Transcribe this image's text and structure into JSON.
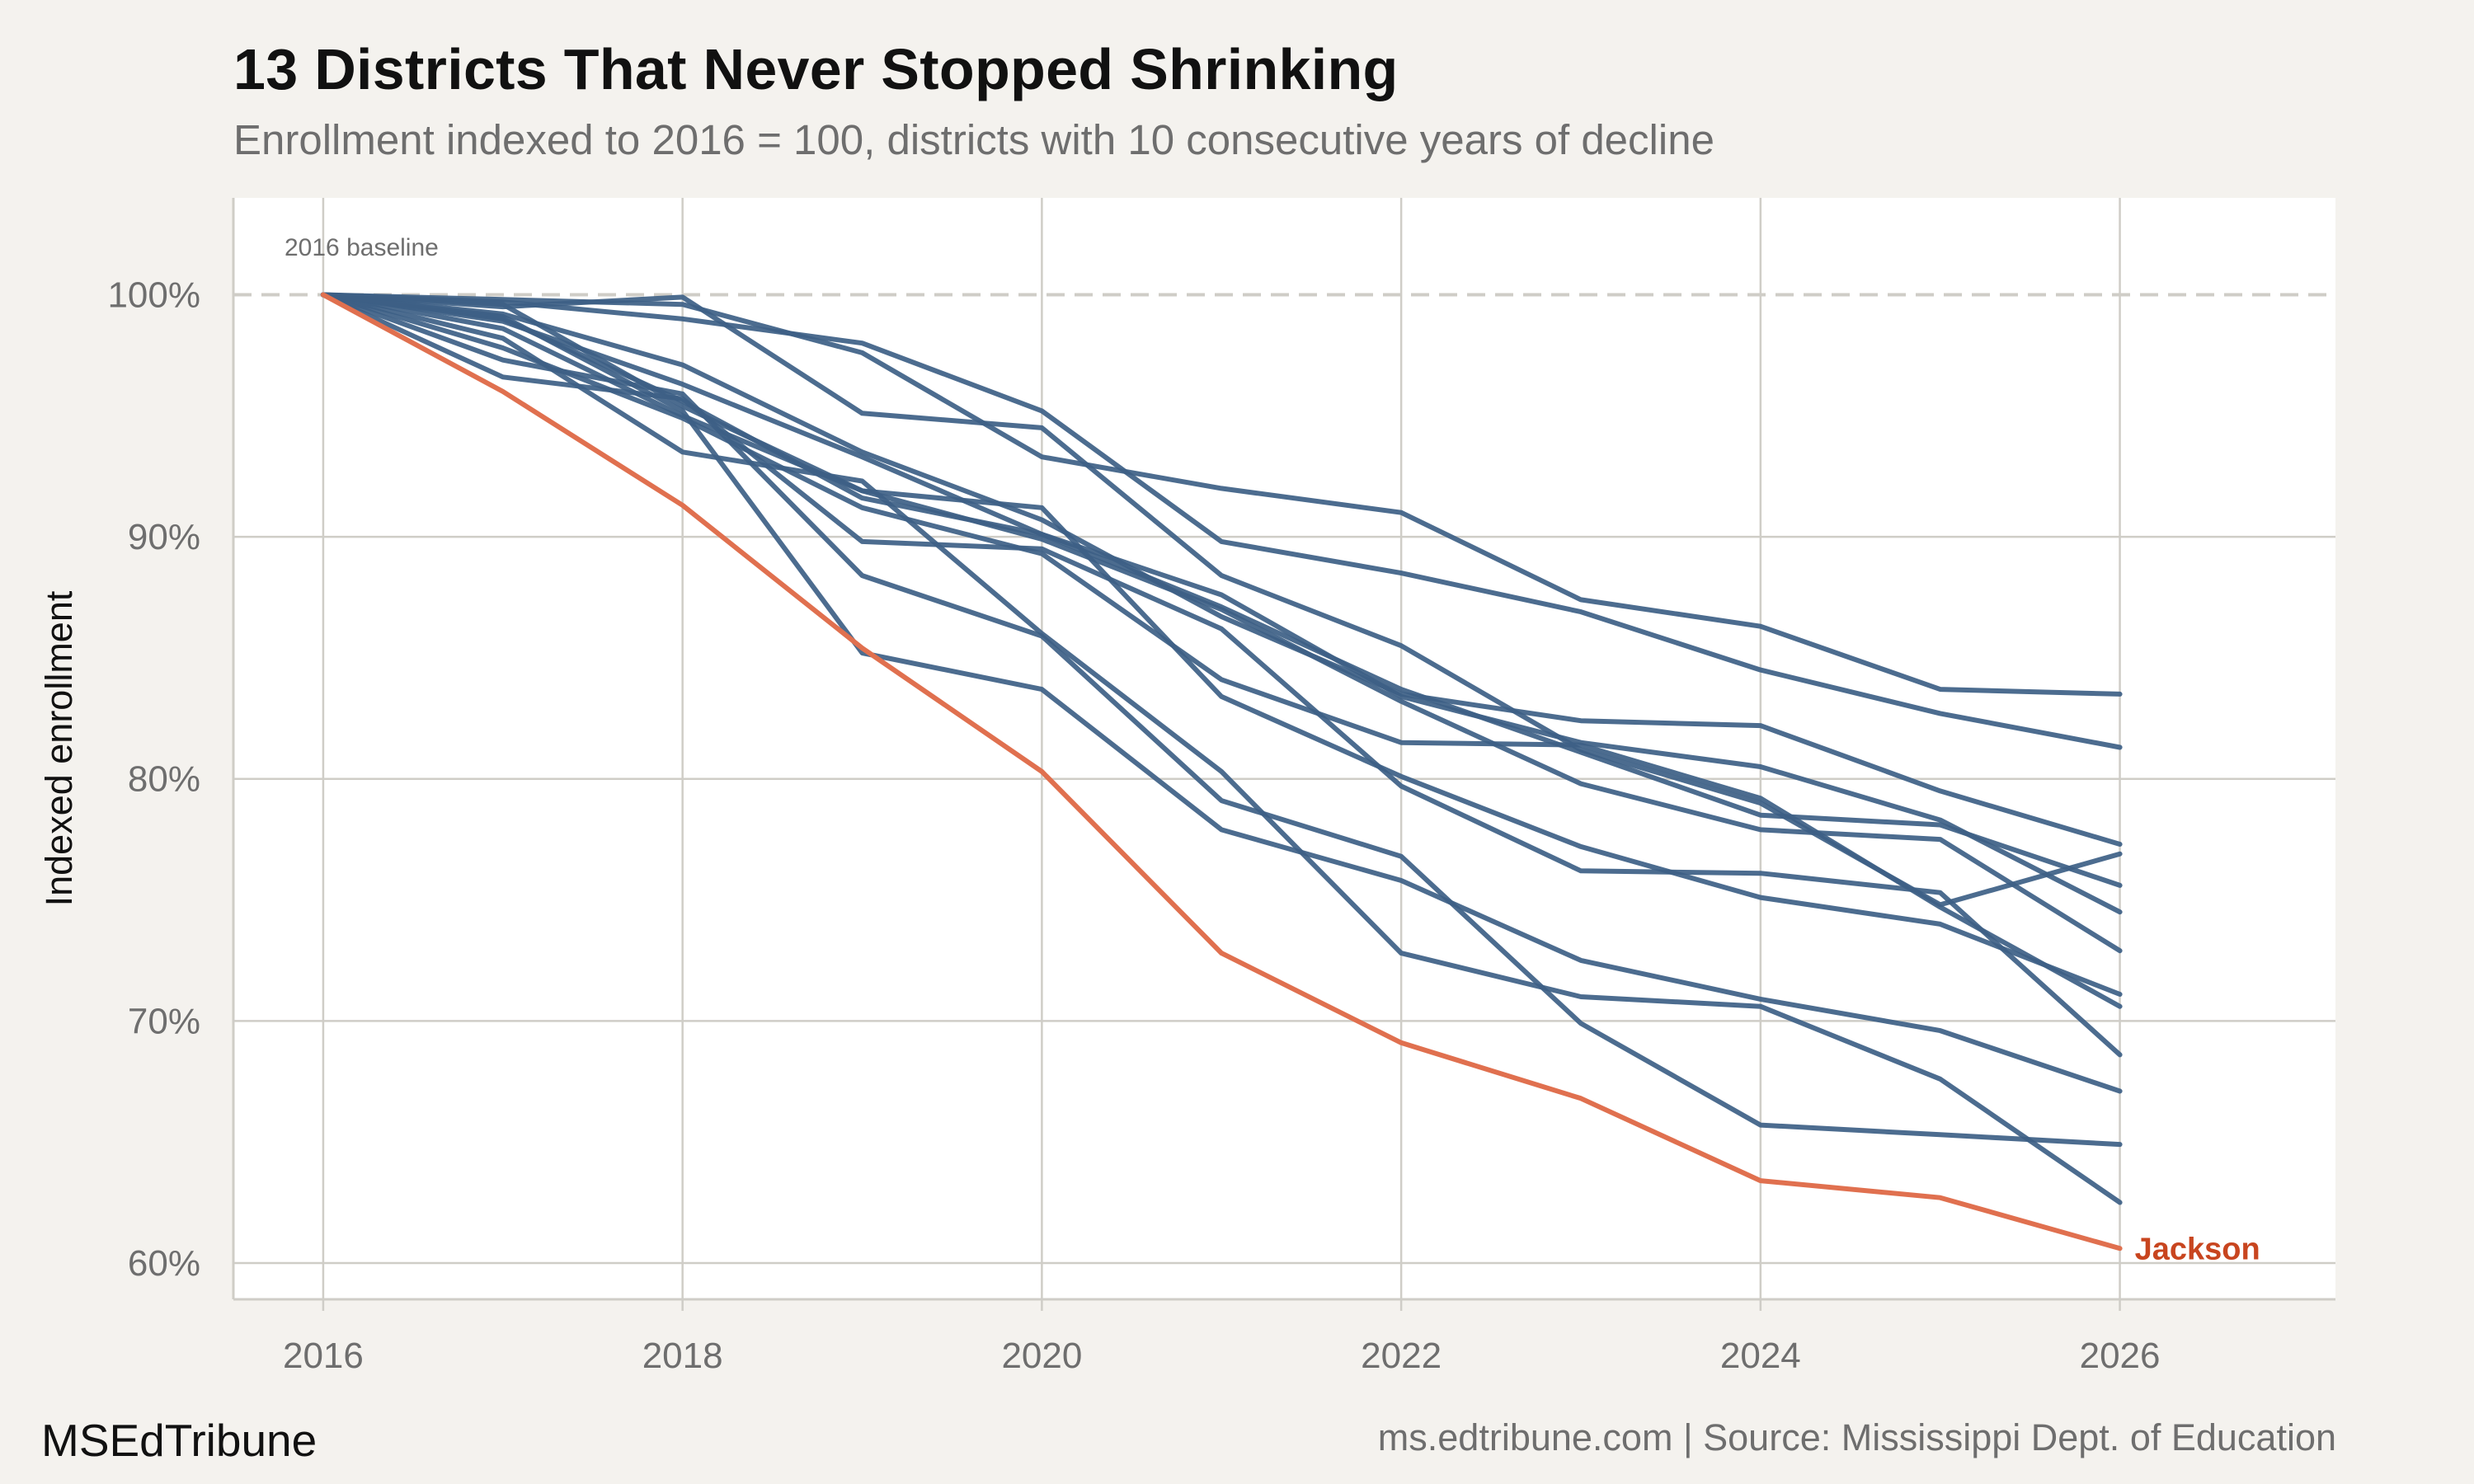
{
  "header": {
    "title": "13 Districts That Never Stopped Shrinking",
    "subtitle": "Enrollment indexed to 2016 = 100, districts with 10 consecutive years of decline"
  },
  "footer": {
    "brand": "MSEdTribune",
    "source": "ms.edtribune.com | Source: Mississippi Dept. of Education"
  },
  "colors": {
    "background": "#f4f2ee",
    "panel": "#ffffff",
    "grid": "#cfcdc7",
    "district_line": "#3d5f85",
    "highlight_line": "#e0704f",
    "highlight_label": "#c8451f"
  },
  "chart_data": {
    "type": "line",
    "ylabel": "Indexed enrollment",
    "xlabel": "",
    "xlim": [
      2015.5,
      2027.2
    ],
    "ylim": [
      58.5,
      104
    ],
    "x_ticks": [
      "2016",
      "2018",
      "2020",
      "2022",
      "2024",
      "2026"
    ],
    "y_ticks": [
      "60%",
      "70%",
      "80%",
      "90%",
      "100%"
    ],
    "grid": true,
    "baseline": {
      "value": 100,
      "label": "2016 baseline"
    },
    "x": [
      2016,
      2017,
      2018,
      2019,
      2020,
      2021,
      2022,
      2023,
      2024,
      2025,
      2026
    ],
    "highlight": {
      "label": "Jackson",
      "values": [
        100,
        96.0,
        91.3,
        85.4,
        80.3,
        72.8,
        69.1,
        66.8,
        63.4,
        62.7,
        60.6
      ]
    },
    "series": [
      {
        "values": [
          100,
          99.7,
          99.0,
          98.0,
          95.2,
          89.8,
          88.5,
          86.9,
          84.5,
          82.7,
          81.3
        ]
      },
      {
        "values": [
          100,
          99.8,
          99.6,
          97.6,
          93.3,
          92.0,
          91.0,
          87.4,
          86.3,
          83.7,
          83.5
        ]
      },
      {
        "values": [
          100,
          99.5,
          99.9,
          95.1,
          94.5,
          88.4,
          85.5,
          81.2,
          79.0,
          74.8,
          76.9
        ]
      },
      {
        "values": [
          100,
          99.2,
          97.1,
          93.5,
          90.7,
          86.7,
          83.5,
          82.4,
          82.2,
          79.5,
          77.3
        ]
      },
      {
        "values": [
          100,
          98.9,
          96.3,
          93.3,
          90.1,
          87.6,
          83.4,
          81.5,
          80.5,
          78.3,
          74.5
        ]
      },
      {
        "values": [
          100,
          98.6,
          95.0,
          91.9,
          89.9,
          87.0,
          83.2,
          79.8,
          77.9,
          77.5,
          72.9
        ]
      },
      {
        "values": [
          100,
          99.0,
          95.6,
          91.6,
          90.1,
          87.1,
          83.7,
          81.1,
          78.5,
          78.1,
          75.6
        ]
      },
      {
        "values": [
          100,
          97.8,
          94.9,
          91.2,
          89.3,
          84.1,
          81.5,
          81.4,
          79.2,
          74.7,
          70.6
        ]
      },
      {
        "values": [
          100,
          96.6,
          95.7,
          89.8,
          89.5,
          86.2,
          79.7,
          76.2,
          76.1,
          75.3,
          68.6
        ]
      },
      {
        "values": [
          100,
          99.6,
          95.4,
          91.9,
          91.2,
          83.4,
          80.1,
          77.2,
          75.1,
          74.0,
          71.1
        ]
      },
      {
        "values": [
          100,
          98.2,
          93.5,
          92.3,
          86.0,
          80.3,
          72.8,
          71.0,
          70.6,
          67.6,
          62.5
        ]
      },
      {
        "values": [
          100,
          99.1,
          95.2,
          85.2,
          83.7,
          77.9,
          75.8,
          72.5,
          70.9,
          69.6,
          67.1
        ]
      },
      {
        "values": [
          100,
          97.3,
          95.9,
          88.4,
          85.9,
          79.1,
          76.8,
          69.9,
          65.7,
          65.3,
          64.9
        ]
      }
    ]
  }
}
